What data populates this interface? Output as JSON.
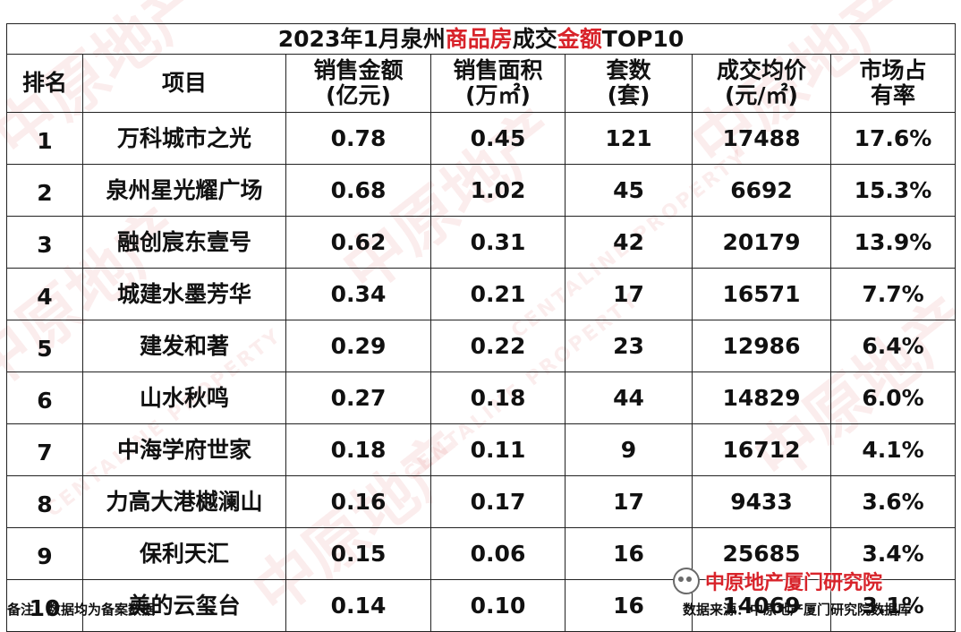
{
  "title": {
    "part1": "2023年1月泉州",
    "part2": "商品房",
    "part3": "成交",
    "part4": "金额",
    "part5": "TOP10"
  },
  "headers": [
    [
      "排名"
    ],
    [
      "项目"
    ],
    [
      "销售金额",
      "(亿元)"
    ],
    [
      "销售面积",
      "(万㎡)"
    ],
    [
      "套数",
      "(套)"
    ],
    [
      "成交均价",
      "(元/㎡)"
    ],
    [
      "市场占",
      "有率"
    ]
  ],
  "rows": [
    {
      "rank": "1",
      "project": "万科城市之光",
      "amount": "0.78",
      "area": "0.45",
      "units": "121",
      "price": "17488",
      "share": "17.6%"
    },
    {
      "rank": "2",
      "project": "泉州星光耀广场",
      "amount": "0.68",
      "area": "1.02",
      "units": "45",
      "price": "6692",
      "share": "15.3%"
    },
    {
      "rank": "3",
      "project": "融创宸东壹号",
      "amount": "0.62",
      "area": "0.31",
      "units": "42",
      "price": "20179",
      "share": "13.9%"
    },
    {
      "rank": "4",
      "project": "城建水墨芳华",
      "amount": "0.34",
      "area": "0.21",
      "units": "17",
      "price": "16571",
      "share": "7.7%"
    },
    {
      "rank": "5",
      "project": "建发和著",
      "amount": "0.29",
      "area": "0.22",
      "units": "23",
      "price": "12986",
      "share": "6.4%"
    },
    {
      "rank": "6",
      "project": "山水秋鸣",
      "amount": "0.27",
      "area": "0.18",
      "units": "44",
      "price": "14829",
      "share": "6.0%"
    },
    {
      "rank": "7",
      "project": "中海学府世家",
      "amount": "0.18",
      "area": "0.11",
      "units": "9",
      "price": "16712",
      "share": "4.1%"
    },
    {
      "rank": "8",
      "project": "力高大港樾澜山",
      "amount": "0.16",
      "area": "0.17",
      "units": "17",
      "price": "9433",
      "share": "3.6%"
    },
    {
      "rank": "9",
      "project": "保利天汇",
      "amount": "0.15",
      "area": "0.06",
      "units": "16",
      "price": "25685",
      "share": "3.4%"
    },
    {
      "rank": "10",
      "project": "美的云玺台",
      "amount": "0.14",
      "area": "0.10",
      "units": "16",
      "price": "14069",
      "share": "3.1%"
    }
  ],
  "footer": {
    "note": "备注：数据均为备案数据",
    "source": "数据来源：中原地产厦门研究院数据库",
    "logo_text": "中原地产厦门研究院"
  },
  "watermark": {
    "text": "中原地产",
    "text_en": "CENTALINE PROPERTY"
  },
  "colors": {
    "accent_red": "#d8232a",
    "border": "#222222"
  }
}
